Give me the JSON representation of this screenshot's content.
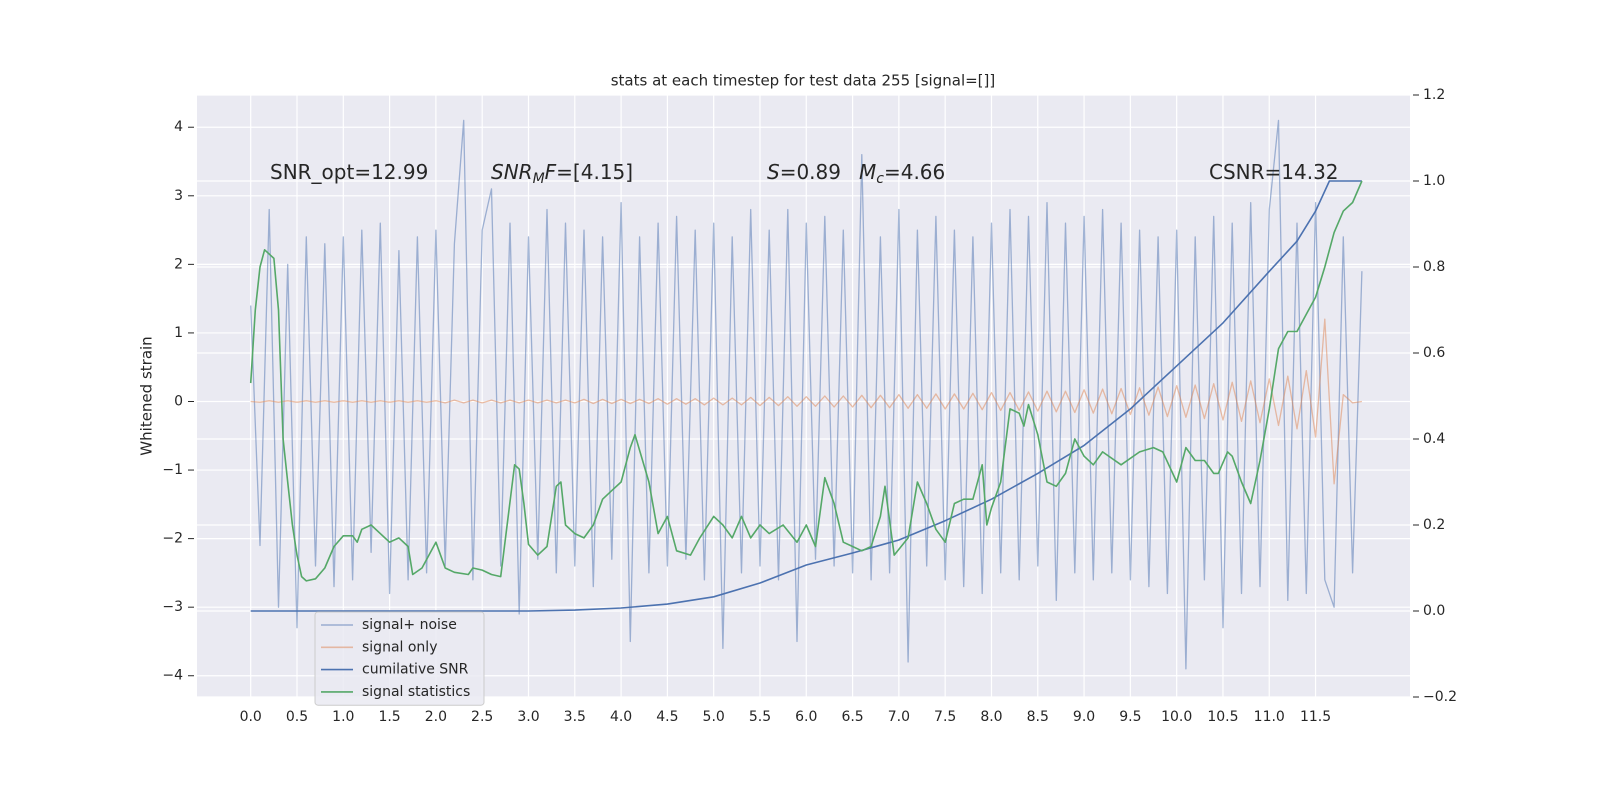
{
  "chart_data": {
    "type": "line",
    "title": "stats at each timestep for test data 255 [signal=[]]",
    "ylabel": "Whitened strain",
    "background": "#eaeaf2",
    "grid": true,
    "legend_loc": "lower left",
    "xlim": [
      -0.58,
      12.52
    ],
    "ylim": [
      -4.31,
      4.47
    ],
    "y2lim": [
      -0.2,
      1.2
    ],
    "xticks": [
      {
        "value": 0,
        "label": "0.0"
      },
      0.5,
      {
        "value": 1,
        "label": "1.0"
      },
      1.5,
      {
        "value": 2,
        "label": "2.0"
      },
      2.5,
      {
        "value": 3,
        "label": "3.0"
      },
      3.5,
      {
        "value": 4,
        "label": "4.0"
      },
      4.5,
      {
        "value": 5,
        "label": "5.0"
      },
      5.5,
      {
        "value": 6,
        "label": "6.0"
      },
      6.5,
      {
        "value": 7,
        "label": "7.0"
      },
      7.5,
      {
        "value": 8,
        "label": "8.0"
      },
      8.5,
      {
        "value": 9,
        "label": "9.0"
      },
      9.5,
      {
        "value": 10,
        "label": "10.0"
      },
      10.5,
      {
        "value": 11,
        "label": "11.0"
      },
      11.5
    ],
    "yticks": [
      {
        "value": -4,
        "label": "−4"
      },
      {
        "value": -3,
        "label": "−3"
      },
      {
        "value": -2,
        "label": "−2"
      },
      {
        "value": -1,
        "label": "−1"
      },
      0,
      1,
      2,
      3,
      4
    ],
    "y2ticks": [
      {
        "value": -0.2,
        "label": "−0.2"
      },
      {
        "value": 0,
        "label": "0.0"
      },
      0.2,
      0.4,
      0.6,
      0.8,
      {
        "value": 1,
        "label": "1.0"
      },
      1.2
    ],
    "annotations": [
      [
        {
          "text": "SNR_opt=12.99",
          "style": "normal"
        }
      ],
      [
        {
          "text": "SNR",
          "style": "italic"
        },
        {
          "text": "M",
          "style": "italic-sub"
        },
        {
          "text": "F",
          "style": "italic"
        },
        {
          "text": "=[4.15]",
          "style": "normal"
        }
      ],
      [
        {
          "text": "S",
          "style": "italic"
        },
        {
          "text": "=0.89",
          "style": "normal"
        }
      ],
      [
        {
          "text": "M",
          "style": "italic"
        },
        {
          "text": "c",
          "style": "italic-sub"
        },
        {
          "text": "=4.66",
          "style": "normal"
        }
      ],
      [
        {
          "text": "CSNR=14.32",
          "style": "normal"
        }
      ]
    ],
    "series": [
      {
        "name": "signal+ noise",
        "color": "#4c72b0",
        "opacity": 0.5,
        "axis": "y",
        "x": [
          0,
          0.1,
          0.2,
          0.3,
          0.4,
          0.5,
          0.6,
          0.7,
          0.8,
          0.9,
          1,
          1.1,
          1.2,
          1.3,
          1.4,
          1.5,
          1.6,
          1.7,
          1.8,
          1.9,
          2,
          2.1,
          2.2,
          2.3,
          2.4,
          2.5,
          2.6,
          2.7,
          2.8,
          2.9,
          3,
          3.1,
          3.2,
          3.3,
          3.4,
          3.5,
          3.6,
          3.7,
          3.8,
          3.9,
          4,
          4.1,
          4.2,
          4.3,
          4.4,
          4.5,
          4.6,
          4.7,
          4.8,
          4.9,
          5,
          5.1,
          5.2,
          5.3,
          5.4,
          5.5,
          5.6,
          5.7,
          5.8,
          5.9,
          6,
          6.1,
          6.2,
          6.3,
          6.4,
          6.5,
          6.6,
          6.7,
          6.8,
          6.9,
          7,
          7.1,
          7.2,
          7.3,
          7.4,
          7.5,
          7.6,
          7.7,
          7.8,
          7.9,
          8,
          8.1,
          8.2,
          8.3,
          8.4,
          8.5,
          8.6,
          8.7,
          8.8,
          8.9,
          9,
          9.1,
          9.2,
          9.3,
          9.4,
          9.5,
          9.6,
          9.7,
          9.8,
          9.9,
          10,
          10.1,
          10.2,
          10.3,
          10.4,
          10.5,
          10.6,
          10.7,
          10.8,
          10.9,
          11,
          11.1,
          11.2,
          11.3,
          11.4,
          11.5,
          11.6,
          11.7,
          11.8,
          11.9,
          12
        ],
        "values": [
          1.4,
          -2.1,
          2.8,
          -3.0,
          2.0,
          -3.3,
          2.4,
          -2.4,
          2.3,
          -2.7,
          2.4,
          -2.6,
          2.5,
          -2.2,
          2.6,
          -2.8,
          2.2,
          -2.6,
          2.4,
          -2.5,
          2.5,
          -2.4,
          2.3,
          4.1,
          -2.6,
          2.5,
          3.1,
          -2.4,
          2.6,
          -3.1,
          2.4,
          -2.3,
          2.8,
          -2.5,
          2.6,
          -2.4,
          2.5,
          -2.7,
          2.4,
          -2.3,
          2.9,
          -3.5,
          2.4,
          -2.5,
          2.6,
          -2.4,
          2.7,
          -2.3,
          2.5,
          -2.6,
          2.6,
          -3.6,
          2.4,
          -2.5,
          2.8,
          -2.4,
          2.5,
          -2.6,
          2.8,
          -3.5,
          2.6,
          -2.3,
          2.7,
          -2.4,
          2.5,
          -2.5,
          3.6,
          -2.6,
          2.4,
          -2.5,
          2.8,
          -3.8,
          2.5,
          -2.4,
          2.7,
          -2.6,
          2.5,
          -2.7,
          2.4,
          -2.8,
          2.6,
          -2.5,
          2.8,
          -2.6,
          2.7,
          -2.4,
          2.9,
          -2.9,
          2.6,
          -2.5,
          2.7,
          -2.6,
          2.8,
          -2.5,
          2.6,
          -2.6,
          2.5,
          -2.7,
          2.4,
          -2.8,
          2.5,
          -3.9,
          2.4,
          -2.6,
          2.7,
          -3.3,
          2.6,
          -2.8,
          2.9,
          -2.7,
          2.8,
          4.1,
          -2.9,
          2.6,
          -2.8,
          2.9,
          -2.6,
          -3.0,
          2.4,
          -2.5,
          1.9
        ]
      },
      {
        "name": "signal only",
        "color": "#dd8452",
        "opacity": 0.5,
        "axis": "y",
        "x": [
          0,
          0.1,
          0.2,
          0.3,
          0.4,
          0.5,
          0.6,
          0.7,
          0.8,
          0.9,
          1,
          1.1,
          1.2,
          1.3,
          1.4,
          1.5,
          1.6,
          1.7,
          1.8,
          1.9,
          2,
          2.1,
          2.2,
          2.3,
          2.4,
          2.5,
          2.6,
          2.7,
          2.8,
          2.9,
          3,
          3.1,
          3.2,
          3.3,
          3.4,
          3.5,
          3.6,
          3.7,
          3.8,
          3.9,
          4,
          4.1,
          4.2,
          4.3,
          4.4,
          4.5,
          4.6,
          4.7,
          4.8,
          4.9,
          5,
          5.1,
          5.2,
          5.3,
          5.4,
          5.5,
          5.6,
          5.7,
          5.8,
          5.9,
          6,
          6.1,
          6.2,
          6.3,
          6.4,
          6.5,
          6.6,
          6.7,
          6.8,
          6.9,
          7,
          7.1,
          7.2,
          7.3,
          7.4,
          7.5,
          7.6,
          7.7,
          7.8,
          7.9,
          8,
          8.1,
          8.2,
          8.3,
          8.4,
          8.5,
          8.6,
          8.7,
          8.8,
          8.9,
          9,
          9.1,
          9.2,
          9.3,
          9.4,
          9.5,
          9.6,
          9.7,
          9.8,
          9.9,
          10,
          10.1,
          10.2,
          10.3,
          10.4,
          10.5,
          10.6,
          10.7,
          10.8,
          10.9,
          11,
          11.1,
          11.2,
          11.3,
          11.4,
          11.5,
          11.6,
          11.7,
          11.8,
          11.9,
          12
        ],
        "values": [
          0,
          -0.01,
          0.01,
          -0.01,
          0.01,
          -0.01,
          0.01,
          -0.01,
          0.01,
          -0.01,
          0.01,
          -0.01,
          0.01,
          -0.01,
          0.01,
          -0.01,
          0.01,
          -0.01,
          0.01,
          -0.01,
          0.01,
          -0.02,
          0.02,
          -0.02,
          0.02,
          -0.02,
          0.02,
          -0.02,
          0.02,
          -0.02,
          0.02,
          -0.02,
          0.02,
          -0.02,
          0.02,
          -0.02,
          0.03,
          -0.03,
          0.03,
          -0.03,
          0.03,
          -0.03,
          0.03,
          -0.03,
          0.04,
          -0.04,
          0.04,
          -0.04,
          0.04,
          -0.05,
          0.05,
          -0.05,
          0.05,
          -0.05,
          0.06,
          -0.06,
          0.06,
          -0.06,
          0.07,
          -0.07,
          0.07,
          -0.07,
          0.08,
          -0.08,
          0.08,
          -0.08,
          0.09,
          -0.09,
          0.09,
          -0.09,
          0.1,
          -0.1,
          0.1,
          -0.1,
          0.11,
          -0.11,
          0.11,
          -0.11,
          0.12,
          -0.12,
          0.13,
          -0.13,
          0.13,
          -0.13,
          0.14,
          -0.14,
          0.15,
          -0.15,
          0.15,
          -0.16,
          0.17,
          -0.17,
          0.18,
          -0.18,
          0.19,
          -0.19,
          0.2,
          -0.2,
          0.21,
          -0.22,
          0.23,
          -0.23,
          0.24,
          -0.25,
          0.26,
          -0.27,
          0.28,
          -0.29,
          0.3,
          -0.31,
          0.33,
          -0.35,
          0.37,
          -0.4,
          0.45,
          -0.52,
          1.2,
          -1.2,
          0.1,
          -0.02,
          0
        ]
      },
      {
        "name": "cumilative SNR",
        "color": "#4c72b0",
        "opacity": 1,
        "axis": "y2",
        "x": [
          0,
          1,
          2,
          3,
          3.5,
          4,
          4.5,
          5,
          5.5,
          6,
          6.5,
          7,
          7.5,
          8,
          8.5,
          9,
          9.5,
          10,
          10.5,
          11,
          11.3,
          11.5,
          11.65,
          12
        ],
        "values": [
          0,
          0,
          0,
          0,
          0.002,
          0.007,
          0.016,
          0.033,
          0.065,
          0.107,
          0.135,
          0.165,
          0.21,
          0.26,
          0.32,
          0.385,
          0.47,
          0.57,
          0.67,
          0.79,
          0.86,
          0.93,
          1.0,
          1.0
        ]
      },
      {
        "name": "signal statistics",
        "color": "#55a868",
        "opacity": 1,
        "axis": "y2",
        "x": [
          0,
          0.05,
          0.1,
          0.15,
          0.2,
          0.25,
          0.3,
          0.35,
          0.4,
          0.45,
          0.5,
          0.55,
          0.6,
          0.7,
          0.8,
          0.9,
          1,
          1.1,
          1.15,
          1.2,
          1.3,
          1.4,
          1.5,
          1.6,
          1.7,
          1.75,
          1.85,
          1.95,
          2,
          2.1,
          2.2,
          2.35,
          2.4,
          2.5,
          2.6,
          2.7,
          2.85,
          2.9,
          2.95,
          3,
          3.1,
          3.2,
          3.3,
          3.35,
          3.4,
          3.5,
          3.6,
          3.7,
          3.8,
          3.9,
          4,
          4.1,
          4.15,
          4.3,
          4.4,
          4.5,
          4.6,
          4.75,
          4.85,
          5,
          5.1,
          5.2,
          5.3,
          5.4,
          5.5,
          5.6,
          5.75,
          5.9,
          6,
          6.1,
          6.2,
          6.3,
          6.4,
          6.5,
          6.6,
          6.7,
          6.8,
          6.85,
          6.95,
          7.1,
          7.2,
          7.3,
          7.4,
          7.5,
          7.6,
          7.7,
          7.8,
          7.9,
          7.95,
          8,
          8.1,
          8.2,
          8.3,
          8.35,
          8.4,
          8.5,
          8.6,
          8.7,
          8.8,
          8.9,
          9,
          9.1,
          9.2,
          9.4,
          9.6,
          9.75,
          9.85,
          10,
          10.1,
          10.2,
          10.3,
          10.4,
          10.45,
          10.55,
          10.6,
          10.7,
          10.8,
          10.9,
          11,
          11.1,
          11.2,
          11.3,
          11.4,
          11.5,
          11.6,
          11.7,
          11.8,
          11.9,
          12
        ],
        "values": [
          0.53,
          0.7,
          0.8,
          0.84,
          0.83,
          0.82,
          0.7,
          0.4,
          0.3,
          0.2,
          0.13,
          0.08,
          0.07,
          0.075,
          0.1,
          0.15,
          0.175,
          0.175,
          0.16,
          0.19,
          0.2,
          0.18,
          0.16,
          0.17,
          0.15,
          0.085,
          0.1,
          0.14,
          0.16,
          0.1,
          0.09,
          0.085,
          0.1,
          0.095,
          0.085,
          0.08,
          0.34,
          0.33,
          0.25,
          0.155,
          0.13,
          0.15,
          0.29,
          0.3,
          0.2,
          0.18,
          0.17,
          0.2,
          0.26,
          0.28,
          0.3,
          0.38,
          0.41,
          0.3,
          0.18,
          0.22,
          0.14,
          0.13,
          0.17,
          0.22,
          0.2,
          0.17,
          0.22,
          0.17,
          0.2,
          0.18,
          0.2,
          0.16,
          0.2,
          0.15,
          0.31,
          0.25,
          0.16,
          0.15,
          0.14,
          0.15,
          0.22,
          0.29,
          0.13,
          0.17,
          0.3,
          0.25,
          0.19,
          0.16,
          0.25,
          0.26,
          0.26,
          0.34,
          0.2,
          0.24,
          0.3,
          0.47,
          0.46,
          0.43,
          0.48,
          0.41,
          0.3,
          0.29,
          0.32,
          0.4,
          0.36,
          0.34,
          0.37,
          0.34,
          0.37,
          0.38,
          0.37,
          0.3,
          0.38,
          0.35,
          0.35,
          0.32,
          0.32,
          0.37,
          0.36,
          0.3,
          0.25,
          0.35,
          0.47,
          0.61,
          0.65,
          0.65,
          0.69,
          0.73,
          0.8,
          0.88,
          0.93,
          0.95,
          1.0
        ]
      }
    ]
  }
}
